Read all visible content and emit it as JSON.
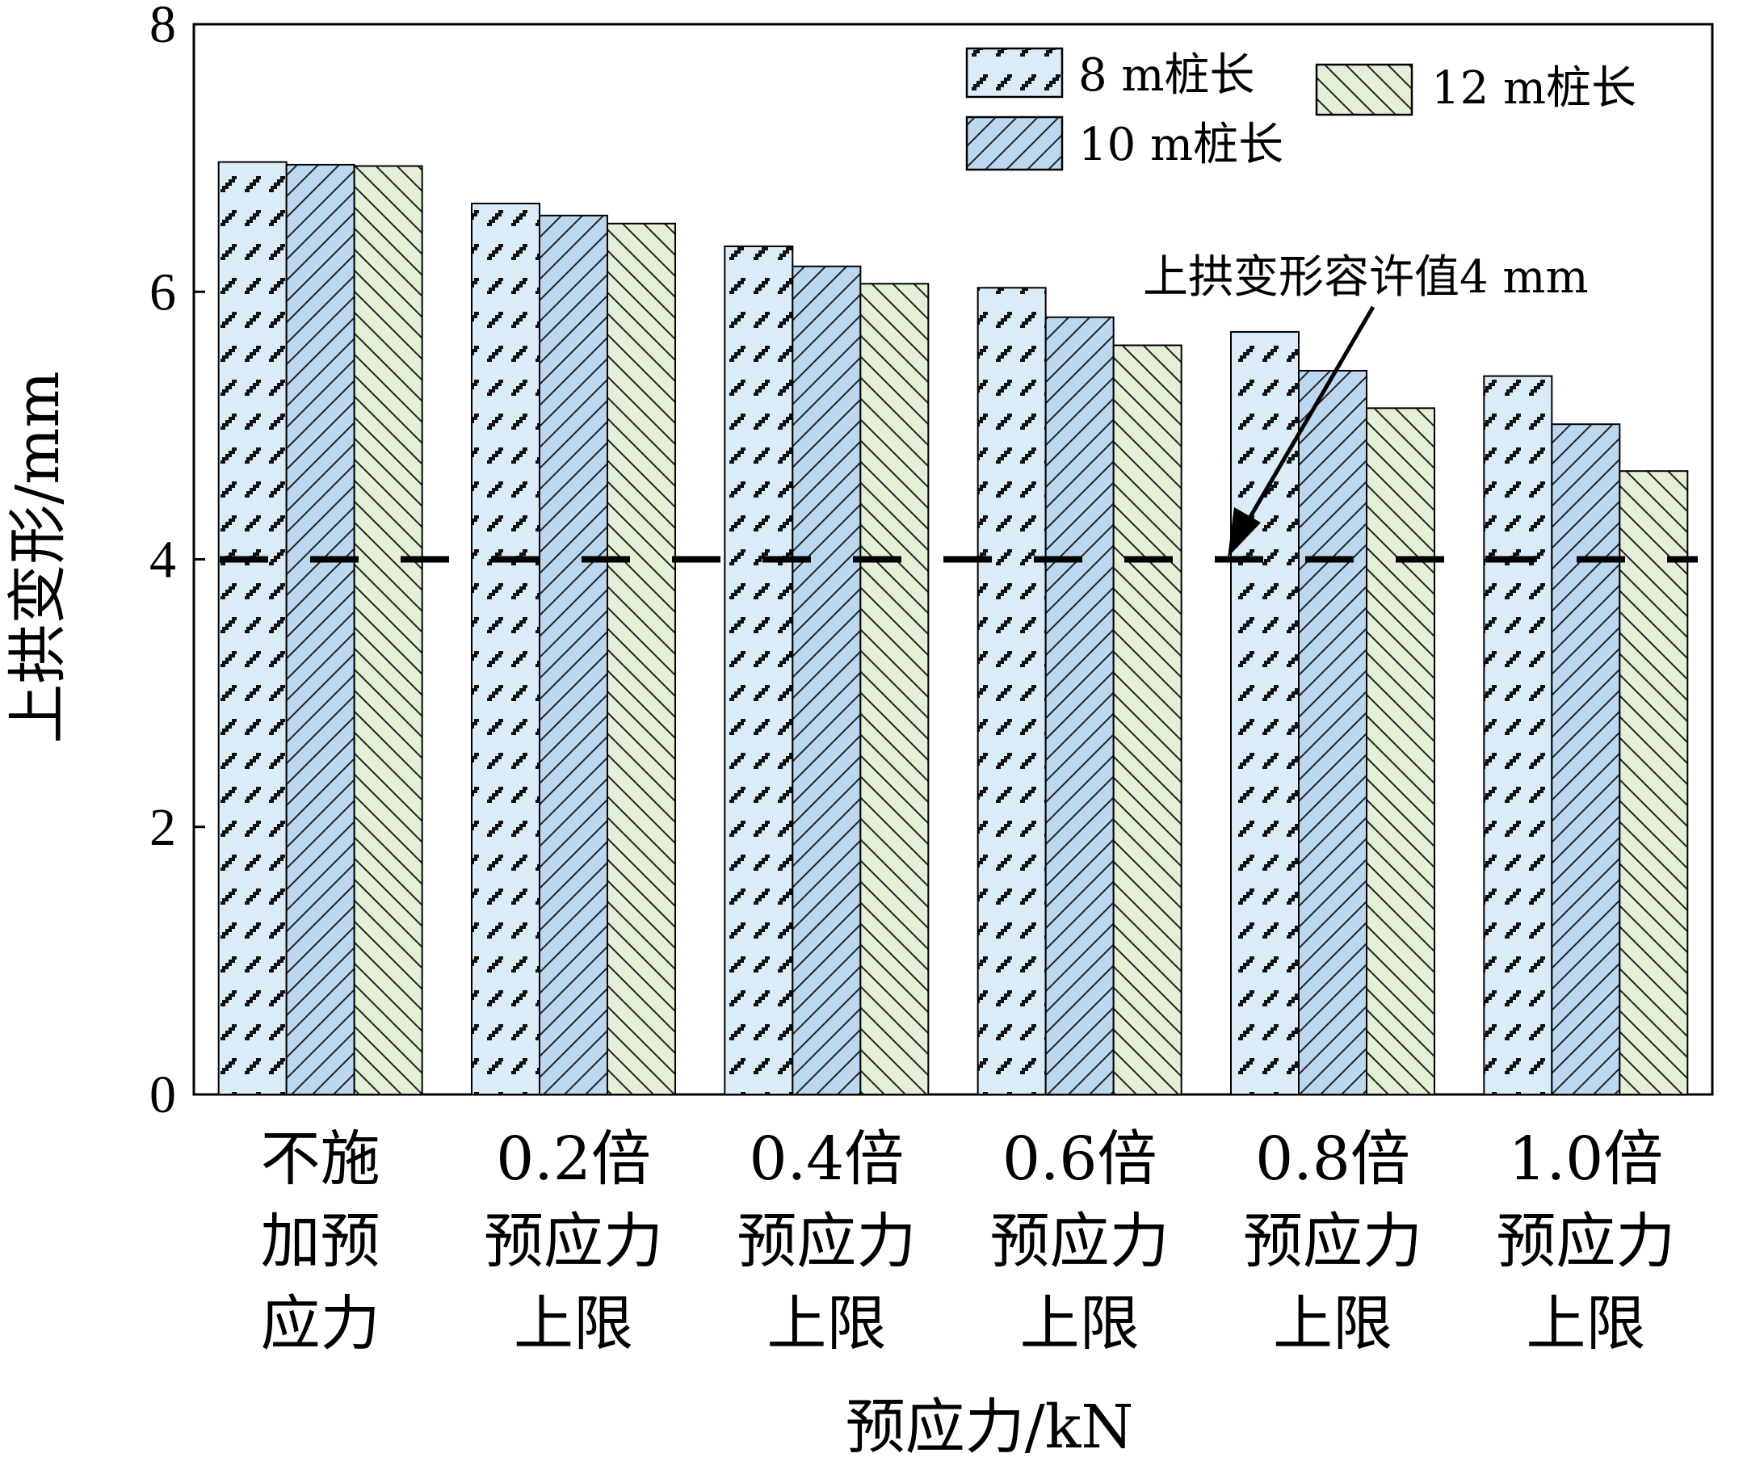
{
  "chart_data": {
    "type": "bar",
    "categories": [
      [
        "不施",
        "加预",
        "应力"
      ],
      [
        "0.2倍",
        "预应力",
        "上限"
      ],
      [
        "0.4倍",
        "预应力",
        "上限"
      ],
      [
        "0.6倍",
        "预应力",
        "上限"
      ],
      [
        "0.8倍",
        "预应力",
        "上限"
      ],
      [
        "1.0倍",
        "预应力",
        "上限"
      ]
    ],
    "series": [
      {
        "name": "8 m桩长",
        "values": [
          6.97,
          6.66,
          6.34,
          6.03,
          5.7,
          5.37
        ],
        "color": "#d9ecf7",
        "pattern": "dash"
      },
      {
        "name": "10 m桩长",
        "values": [
          6.95,
          6.57,
          6.19,
          5.81,
          5.41,
          5.01
        ],
        "color": "#bcd8f0",
        "pattern": "diag-right"
      },
      {
        "name": "12 m桩长",
        "values": [
          6.94,
          6.51,
          6.06,
          5.6,
          5.13,
          4.66
        ],
        "color": "#e4f0d6",
        "pattern": "diag-left"
      }
    ],
    "xlabel": "预应力/kN",
    "ylabel": "上拱变形/mm",
    "ylim": [
      0,
      8
    ],
    "yticks": [
      0,
      2,
      4,
      6,
      8
    ],
    "reference_line": {
      "value": 4,
      "style": "dashed",
      "label": "上拱变形容许值4 mm"
    },
    "legend_position": "top-right",
    "grid": false
  }
}
